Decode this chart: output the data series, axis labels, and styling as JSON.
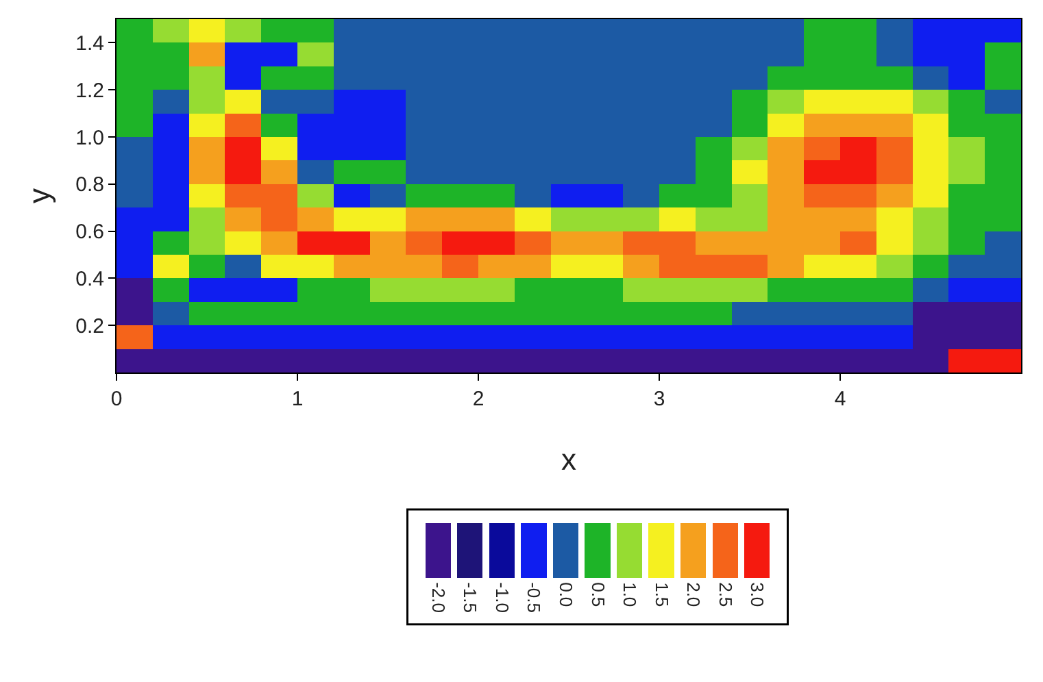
{
  "chart_data": {
    "type": "heatmap",
    "xlabel": "x",
    "ylabel": "y",
    "x": [
      0.1,
      0.3,
      0.5,
      0.7,
      0.9,
      1.1,
      1.3,
      1.5,
      1.7,
      1.9,
      2.1,
      2.3,
      2.5,
      2.7,
      2.9,
      3.1,
      3.3,
      3.5,
      3.7,
      3.9,
      4.1,
      4.3,
      4.5,
      4.7,
      4.9
    ],
    "cells": [
      [
        0.5,
        1.0,
        1.5,
        1.0,
        0.5,
        0.5,
        0.0,
        0.0,
        0.0,
        0.0,
        0.0,
        0.0,
        0.0,
        0.0,
        0.0,
        0.0,
        0.0,
        0.0,
        0.0,
        0.5,
        0.5,
        0.0,
        -0.5,
        -0.5,
        -0.5
      ],
      [
        0.5,
        0.5,
        2.0,
        -0.5,
        -0.5,
        1.0,
        0.0,
        0.0,
        0.0,
        0.0,
        0.0,
        0.0,
        0.0,
        0.0,
        0.0,
        0.0,
        0.0,
        0.0,
        0.0,
        0.5,
        0.5,
        0.0,
        -0.5,
        -0.5,
        0.5
      ],
      [
        0.5,
        0.5,
        1.0,
        -0.5,
        0.5,
        0.5,
        0.0,
        0.0,
        0.0,
        0.0,
        0.0,
        0.0,
        0.0,
        0.0,
        0.0,
        0.0,
        0.0,
        0.0,
        0.5,
        0.5,
        0.5,
        0.5,
        0.0,
        -0.5,
        0.5
      ],
      [
        0.5,
        0.0,
        1.0,
        1.5,
        0.0,
        0.0,
        -0.5,
        -0.5,
        0.0,
        0.0,
        0.0,
        0.0,
        0.0,
        0.0,
        0.0,
        0.0,
        0.0,
        0.5,
        1.0,
        1.5,
        1.5,
        1.5,
        1.0,
        0.5,
        0.0
      ],
      [
        0.5,
        -0.5,
        1.5,
        2.5,
        0.5,
        -0.5,
        -0.5,
        -0.5,
        0.0,
        0.0,
        0.0,
        0.0,
        0.0,
        0.0,
        0.0,
        0.0,
        0.0,
        0.5,
        1.5,
        2.0,
        2.0,
        2.0,
        1.5,
        0.5,
        0.5
      ],
      [
        0.0,
        -0.5,
        2.0,
        3.0,
        1.5,
        -0.5,
        -0.5,
        -0.5,
        0.0,
        0.0,
        0.0,
        0.0,
        0.0,
        0.0,
        0.0,
        0.0,
        0.5,
        1.0,
        2.0,
        2.5,
        3.0,
        2.5,
        1.5,
        1.0,
        0.5
      ],
      [
        0.0,
        -0.5,
        2.0,
        3.0,
        2.0,
        0.0,
        0.5,
        0.5,
        0.0,
        0.0,
        0.0,
        0.0,
        0.0,
        0.0,
        0.0,
        0.0,
        0.5,
        1.5,
        2.0,
        3.0,
        3.0,
        2.5,
        1.5,
        1.0,
        0.5
      ],
      [
        0.0,
        -0.5,
        1.5,
        2.5,
        2.5,
        1.0,
        -0.5,
        0.0,
        0.5,
        0.5,
        0.5,
        0.0,
        -0.5,
        -0.5,
        0.0,
        0.5,
        0.5,
        1.0,
        2.0,
        2.5,
        2.5,
        2.0,
        1.5,
        0.5,
        0.5
      ],
      [
        -0.5,
        -0.5,
        1.0,
        2.0,
        2.5,
        2.0,
        1.5,
        1.5,
        2.0,
        2.0,
        2.0,
        1.5,
        1.0,
        1.0,
        1.0,
        1.5,
        1.0,
        1.0,
        2.0,
        2.0,
        2.0,
        1.5,
        1.0,
        0.5,
        0.5
      ],
      [
        -0.5,
        0.5,
        1.0,
        1.5,
        2.0,
        3.0,
        3.0,
        2.0,
        2.5,
        3.0,
        3.0,
        2.5,
        2.0,
        2.0,
        2.5,
        2.5,
        2.0,
        2.0,
        2.0,
        2.0,
        2.5,
        1.5,
        1.0,
        0.5,
        0.0
      ],
      [
        -0.5,
        1.5,
        0.5,
        0.0,
        1.5,
        1.5,
        2.0,
        2.0,
        2.0,
        2.5,
        2.0,
        2.0,
        1.5,
        1.5,
        2.0,
        2.5,
        2.5,
        2.5,
        2.0,
        1.5,
        1.5,
        1.0,
        0.5,
        0.0,
        0.0
      ],
      [
        -2.0,
        0.5,
        -0.5,
        -0.5,
        -0.5,
        0.5,
        0.5,
        1.0,
        1.0,
        1.0,
        1.0,
        0.5,
        0.5,
        0.5,
        1.0,
        1.0,
        1.0,
        1.0,
        0.5,
        0.5,
        0.5,
        0.5,
        0.0,
        -0.5,
        -0.5
      ],
      [
        -2.0,
        0.0,
        0.5,
        0.5,
        0.5,
        0.5,
        0.5,
        0.5,
        0.5,
        0.5,
        0.5,
        0.5,
        0.5,
        0.5,
        0.5,
        0.5,
        0.5,
        0.0,
        0.0,
        0.0,
        0.0,
        0.0,
        -2.0,
        -2.0,
        -2.0
      ],
      [
        2.5,
        -0.5,
        -0.5,
        -0.5,
        -0.5,
        -0.5,
        -0.5,
        -0.5,
        -0.5,
        -0.5,
        -0.5,
        -0.5,
        -0.5,
        -0.5,
        -0.5,
        -0.5,
        -0.5,
        -0.5,
        -0.5,
        -0.5,
        -0.5,
        -0.5,
        -2.0,
        -2.0,
        -2.0
      ],
      [
        -2.0,
        -2.0,
        -2.0,
        -2.0,
        -2.0,
        -2.0,
        -2.0,
        -2.0,
        -2.0,
        -2.0,
        -2.0,
        -2.0,
        -2.0,
        -2.0,
        -2.0,
        -2.0,
        -2.0,
        -2.0,
        -2.0,
        -2.0,
        -2.0,
        -2.0,
        -2.0,
        3.0,
        3.0
      ]
    ],
    "xlim": [
      0,
      5
    ],
    "xticks": [
      0,
      1,
      2,
      3,
      4
    ],
    "ylim": [
      0,
      1.5
    ],
    "yticks": [
      0.2,
      0.4,
      0.6,
      0.8,
      {
        "value": 1,
        "label": "1.0"
      },
      1.2,
      1.4
    ],
    "clim": [
      -2.25,
      3.25
    ],
    "cticks": [
      {
        "value": -2,
        "label": "-2.0"
      },
      {
        "value": -1.5,
        "label": "-1.5"
      },
      {
        "value": -1,
        "label": "-1.0"
      },
      {
        "value": -0.5,
        "label": "-0.5"
      },
      {
        "value": 0,
        "label": "0.0"
      },
      {
        "value": 0.5,
        "label": "0.5"
      },
      {
        "value": 1,
        "label": "1.0"
      },
      {
        "value": 1.5,
        "label": "1.5"
      },
      {
        "value": 2,
        "label": "2.0"
      },
      {
        "value": 2.5,
        "label": "2.5"
      },
      {
        "value": 3,
        "label": "3.0"
      }
    ],
    "colors": [
      "#3c148c",
      "#1e1478",
      "#0a0a9b",
      "#0f1ef0",
      "#1c5aa4",
      "#1eb428",
      "#96dc32",
      "#f5f020",
      "#f5a01e",
      "#f5641a",
      "#f51a0f"
    ]
  }
}
